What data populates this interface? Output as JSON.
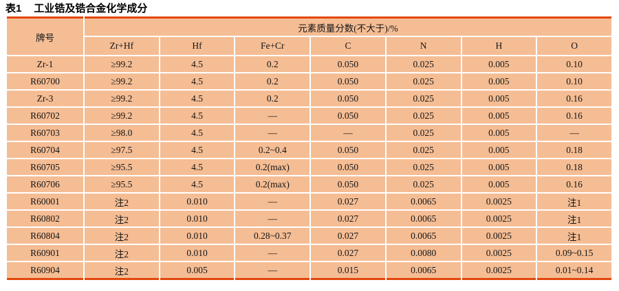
{
  "title": {
    "label": "表1",
    "text": "工业锆及锆合金化学成分"
  },
  "colors": {
    "cell_background": "#f5bd94",
    "rule_line": "#e2470b",
    "text": "#151515"
  },
  "table": {
    "grade_header": "牌号",
    "group_header": "元素质量分数(不大于)/%",
    "columns": [
      "Zr+Hf",
      "Hf",
      "Fe+Cr",
      "C",
      "N",
      "H",
      "O"
    ],
    "rows": [
      {
        "grade": "Zr-1",
        "values": [
          "≥99.2",
          "4.5",
          "0.2",
          "0.050",
          "0.025",
          "0.005",
          "0.10"
        ]
      },
      {
        "grade": "R60700",
        "values": [
          "≥99.2",
          "4.5",
          "0.2",
          "0.050",
          "0.025",
          "0.005",
          "0.10"
        ]
      },
      {
        "grade": "Zr-3",
        "values": [
          "≥99.2",
          "4.5",
          "0.2",
          "0.050",
          "0.025",
          "0.005",
          "0.16"
        ]
      },
      {
        "grade": "R60702",
        "values": [
          "≥99.2",
          "4.5",
          "—",
          "0.050",
          "0.025",
          "0.005",
          "0.16"
        ]
      },
      {
        "grade": "R60703",
        "values": [
          "≥98.0",
          "4.5",
          "—",
          "—",
          "0.025",
          "0.005",
          "—"
        ]
      },
      {
        "grade": "R60704",
        "values": [
          "≥97.5",
          "4.5",
          "0.2~0.4",
          "0.050",
          "0.025",
          "0.005",
          "0.18"
        ]
      },
      {
        "grade": "R60705",
        "values": [
          "≥95.5",
          "4.5",
          "0.2(max)",
          "0.050",
          "0.025",
          "0.005",
          "0.18"
        ]
      },
      {
        "grade": "R60706",
        "values": [
          "≥95.5",
          "4.5",
          "0.2(max)",
          "0.050",
          "0.025",
          "0.005",
          "0.16"
        ]
      },
      {
        "grade": "R60001",
        "values": [
          "注2",
          "0.010",
          "—",
          "0.027",
          "0.0065",
          "0.0025",
          "注1"
        ]
      },
      {
        "grade": "R60802",
        "values": [
          "注2",
          "0.010",
          "—",
          "0.027",
          "0.0065",
          "0.0025",
          "注1"
        ]
      },
      {
        "grade": "R60804",
        "values": [
          "注2",
          "0.010",
          "0.28~0.37",
          "0.027",
          "0.0065",
          "0.0025",
          "注1"
        ]
      },
      {
        "grade": "R60901",
        "values": [
          "注2",
          "0.010",
          "—",
          "0.027",
          "0.0080",
          "0.0025",
          "0.09~0.15"
        ]
      },
      {
        "grade": "R60904",
        "values": [
          "注2",
          "0.005",
          "—",
          "0.015",
          "0.0065",
          "0.0025",
          "0.01~0.14"
        ]
      }
    ]
  }
}
